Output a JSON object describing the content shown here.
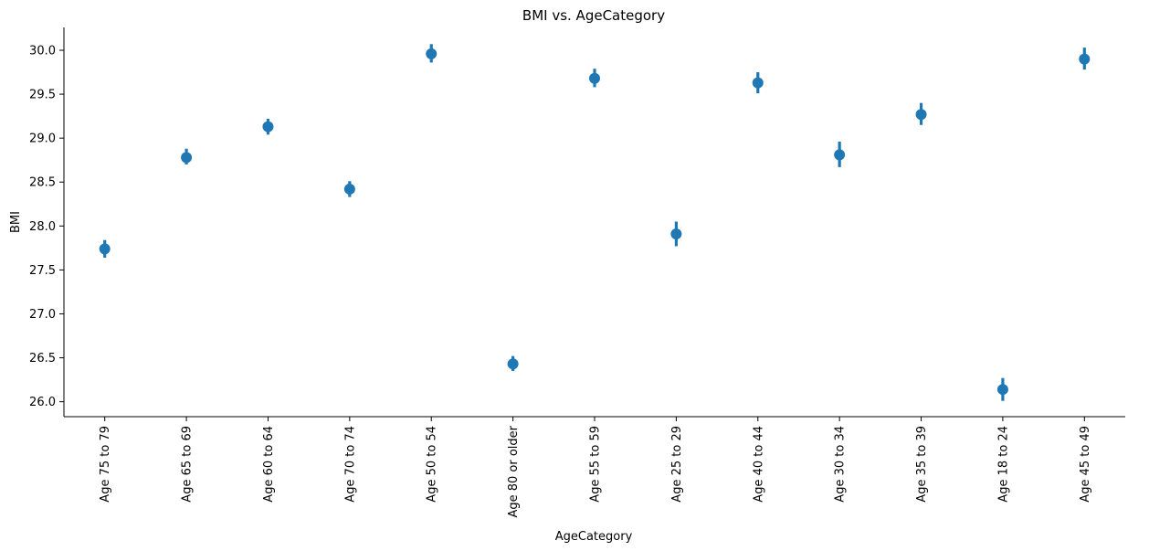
{
  "chart_data": {
    "type": "scatter",
    "title": "BMI vs. AgeCategory",
    "xlabel": "AgeCategory",
    "ylabel": "BMI",
    "categories": [
      "Age 75 to 79",
      "Age 65 to 69",
      "Age 60 to 64",
      "Age 70 to 74",
      "Age 50 to 54",
      "Age 80 or older",
      "Age 55 to 59",
      "Age 25 to 29",
      "Age 40 to 44",
      "Age 30 to 34",
      "Age 35 to 39",
      "Age 18 to 24",
      "Age 45 to 49"
    ],
    "values": [
      27.74,
      28.78,
      29.13,
      28.42,
      29.96,
      26.43,
      29.68,
      27.91,
      29.63,
      28.81,
      29.27,
      26.14,
      29.9
    ],
    "ci_low": [
      27.64,
      28.7,
      29.04,
      28.33,
      29.86,
      26.35,
      29.58,
      27.77,
      29.51,
      28.67,
      29.15,
      26.01,
      29.78
    ],
    "ci_high": [
      27.84,
      28.88,
      29.22,
      28.51,
      30.07,
      26.52,
      29.79,
      28.05,
      29.75,
      28.96,
      29.4,
      26.27,
      30.03
    ],
    "ylim": [
      25.83,
      30.26
    ],
    "yticks": [
      "26.0",
      "26.5",
      "27.0",
      "27.5",
      "28.0",
      "28.5",
      "29.0",
      "29.5",
      "30.0"
    ],
    "grid": false,
    "legend": "none",
    "color": "#1f77b4"
  }
}
